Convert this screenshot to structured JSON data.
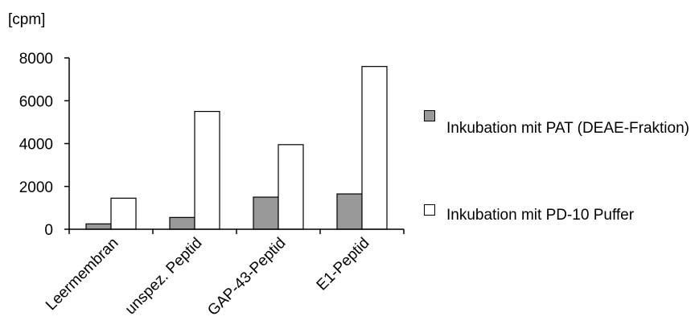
{
  "chart_data": {
    "type": "bar",
    "title": "",
    "ylabel": "[cpm]",
    "xlabel": "",
    "ylim": [
      0,
      8000
    ],
    "yticks": [
      0,
      2000,
      4000,
      6000,
      8000
    ],
    "grid": false,
    "legend_position": "right",
    "categories": [
      "Leermembran",
      "unspez. Peptid",
      "GAP-43-Peptid",
      "E1-Peptid"
    ],
    "series": [
      {
        "name": "Inkubation mit PAT (DEAE-Fraktion)",
        "color": "#999999",
        "values": [
          250,
          550,
          1500,
          1650
        ]
      },
      {
        "name": "Inkubation mit PD-10 Puffer",
        "color": "#ffffff",
        "values": [
          1450,
          5500,
          3950,
          7600
        ]
      }
    ]
  }
}
